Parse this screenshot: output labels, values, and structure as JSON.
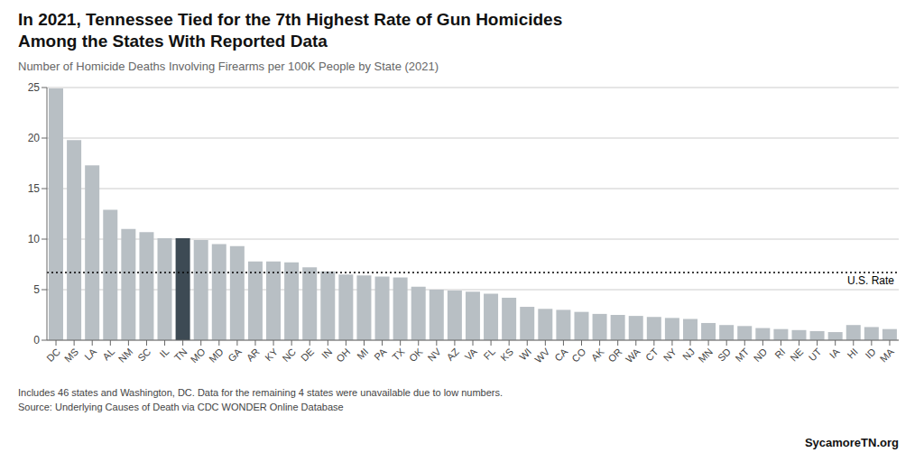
{
  "chart_data": {
    "type": "bar",
    "title": "In 2021, Tennessee Tied for the 7th Highest Rate of Gun Homicides\nAmong the States With Reported Data",
    "subtitle": "Number of Homicide Deaths Involving Firearms per 100K People by State (2021)",
    "categories": [
      "DC",
      "MS",
      "LA",
      "AL",
      "NM",
      "SC",
      "IL",
      "TN",
      "MO",
      "MD",
      "GA",
      "AR",
      "KY",
      "NC",
      "DE",
      "IN",
      "OH",
      "MI",
      "PA",
      "TX",
      "OK",
      "NV",
      "AZ",
      "VA",
      "FL",
      "KS",
      "WI",
      "WV",
      "CA",
      "CO",
      "AK",
      "OR",
      "WA",
      "CT",
      "NY",
      "NJ",
      "MN",
      "SD",
      "MT",
      "ND",
      "RI",
      "NE",
      "UT",
      "IA",
      "HI",
      "ID",
      "MA"
    ],
    "values": [
      24.9,
      19.8,
      17.3,
      12.9,
      11.0,
      10.7,
      10.1,
      10.1,
      9.9,
      9.5,
      9.3,
      7.8,
      7.8,
      7.7,
      7.2,
      6.8,
      6.5,
      6.4,
      6.3,
      6.2,
      5.3,
      5.0,
      4.9,
      4.8,
      4.6,
      4.2,
      3.3,
      3.1,
      3.0,
      2.8,
      2.6,
      2.5,
      2.4,
      2.3,
      2.2,
      2.1,
      1.7,
      1.5,
      1.4,
      1.2,
      1.1,
      1.0,
      0.9,
      0.8,
      1.5,
      1.3,
      1.1
    ],
    "colors": [
      "#b8bfc4",
      "#b8bfc4",
      "#b8bfc4",
      "#b8bfc4",
      "#b8bfc4",
      "#b8bfc4",
      "#b8bfc4",
      "#3d4a54",
      "#b8bfc4",
      "#b8bfc4",
      "#b8bfc4",
      "#b8bfc4",
      "#b8bfc4",
      "#b8bfc4",
      "#b8bfc4",
      "#b8bfc4",
      "#b8bfc4",
      "#b8bfc4",
      "#b8bfc4",
      "#b8bfc4",
      "#b8bfc4",
      "#b8bfc4",
      "#b8bfc4",
      "#b8bfc4",
      "#b8bfc4",
      "#b8bfc4",
      "#b8bfc4",
      "#b8bfc4",
      "#b8bfc4",
      "#b8bfc4",
      "#b8bfc4",
      "#b8bfc4",
      "#b8bfc4",
      "#b8bfc4",
      "#b8bfc4",
      "#b8bfc4",
      "#b8bfc4",
      "#b8bfc4",
      "#b8bfc4",
      "#b8bfc4",
      "#b8bfc4",
      "#b8bfc4",
      "#b8bfc4",
      "#b8bfc4",
      "#b8bfc4",
      "#b8bfc4",
      "#b8bfc4"
    ],
    "ylim": [
      0,
      25
    ],
    "yticks": [
      0,
      5,
      10,
      15,
      20,
      25
    ],
    "grid": true,
    "reference_lines": [
      {
        "value": 6.7,
        "label": "U.S. Rate",
        "line_style": "dotted",
        "color": "#000000"
      }
    ],
    "footnotes": [
      "Includes 46 states and Washington, DC. Data for the remaining 4 states were unavailable due to low numbers.",
      "Source: Underlying Causes of Death via CDC WONDER Online Database"
    ],
    "source": "SycamoreTN.org"
  }
}
